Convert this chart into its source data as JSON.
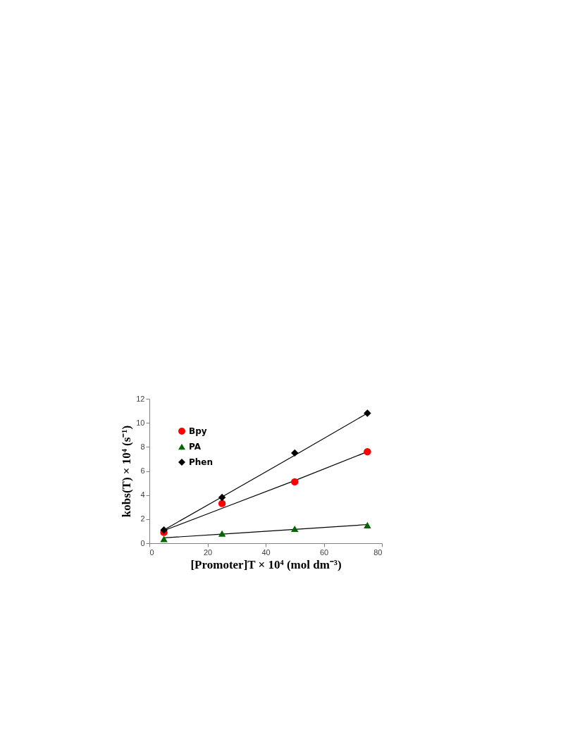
{
  "chart_data": {
    "type": "scatter",
    "xlabel": "[Promoter]T × 10⁴ (mol dm⁻³)",
    "ylabel": "kobs(T) × 10⁴ (s⁻¹)",
    "x": [
      5,
      25,
      50,
      75
    ],
    "series": [
      {
        "name": "Bpy",
        "color": "#ff0000",
        "marker": "circle",
        "values": [
          0.9,
          3.3,
          5.1,
          7.6
        ]
      },
      {
        "name": "PA",
        "color": "#006600",
        "marker": "triangle",
        "values": [
          0.35,
          0.8,
          1.2,
          1.5
        ]
      },
      {
        "name": "Phen",
        "color": "#000000",
        "marker": "diamond",
        "values": [
          1.1,
          3.8,
          7.5,
          10.8
        ]
      },
      {
        "type": "line",
        "color": "#000000",
        "marker": "none",
        "values": [
          1.05,
          2.9,
          5.2,
          7.6
        ]
      },
      {
        "type": "line",
        "color": "#000000",
        "marker": "none",
        "values": [
          0.45,
          0.75,
          1.15,
          1.55
        ]
      },
      {
        "type": "line",
        "color": "#000000",
        "marker": "none",
        "values": [
          1.1,
          3.85,
          7.3,
          10.8
        ]
      }
    ],
    "xlim": [
      0,
      80
    ],
    "xticks": [
      0,
      20,
      40,
      60,
      80
    ],
    "ylim": [
      0,
      12
    ],
    "yticks": [
      0,
      2,
      4,
      6,
      8,
      10,
      12
    ],
    "grid": false,
    "legend": "top left"
  }
}
